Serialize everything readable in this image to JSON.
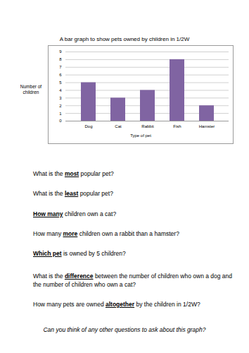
{
  "chart_data": {
    "type": "bar",
    "title": "A bar graph to show pets owned by children in 1/2W",
    "x_label": "Type of pet",
    "y_label": "Number of children",
    "categories": [
      "Dog",
      "Cat",
      "Rabbit",
      "Fish",
      "Hamster"
    ],
    "values": [
      5,
      3,
      4,
      8,
      2
    ],
    "color": "#8064a2",
    "ylim": [
      0,
      9
    ],
    "yticks": [
      0,
      1,
      2,
      3,
      4,
      5,
      6,
      7,
      8,
      9
    ],
    "grid": true
  },
  "questions": [
    [
      {
        "text": "What is the "
      },
      {
        "text": "most",
        "emphasis": true
      },
      {
        "text": " popular pet?"
      }
    ],
    [
      {
        "text": "What is the "
      },
      {
        "text": "least",
        "emphasis": true
      },
      {
        "text": " popular pet?"
      }
    ],
    [
      {
        "text": "How many",
        "emphasis": true
      },
      {
        "text": " children own a cat?"
      }
    ],
    [
      {
        "text": "How many "
      },
      {
        "text": "more",
        "emphasis": true
      },
      {
        "text": " children own a rabbit than a hamster?"
      }
    ],
    [
      {
        "text": "Which pet",
        "emphasis": true
      },
      {
        "text": " is owned by 5 children?"
      }
    ],
    [
      {
        "text": "What is the "
      },
      {
        "text": "difference",
        "emphasis": true
      },
      {
        "text": " between the number of children who own a dog and the number of children who own a cat?"
      }
    ],
    [
      {
        "text": "How many pets are owned "
      },
      {
        "text": "altogether",
        "emphasis": true
      },
      {
        "text": " by the children in 1/2W?"
      }
    ]
  ],
  "closing": "Can you think of any other questions to ask about this graph?"
}
